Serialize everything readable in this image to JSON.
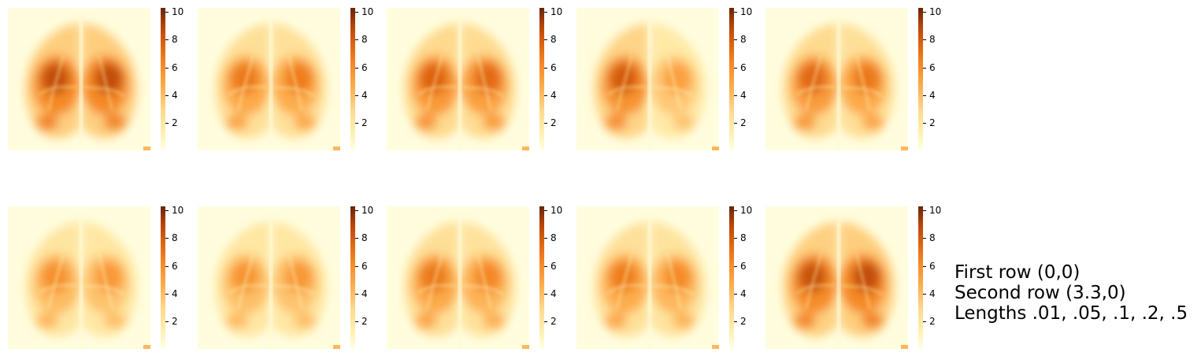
{
  "chart_data": {
    "type": "heatmap",
    "layout": "grid of 2 rows x 5 columns, each panel with its own colorbar",
    "colormap": [
      "#ffffe5",
      "#fff1b3",
      "#fed98e",
      "#fdae4f",
      "#f58a26",
      "#df6410",
      "#b54307",
      "#662506"
    ],
    "colorbar": {
      "range": [
        0,
        10.3
      ],
      "ticks": [
        2,
        4,
        6,
        8,
        10
      ],
      "tick_labels": [
        "2",
        "4",
        "6",
        "8",
        "10"
      ]
    },
    "axes_visible": false,
    "panels": [
      {
        "row": 0,
        "col": 0,
        "left_intensity": 0.92,
        "right_intensity": 0.92
      },
      {
        "row": 0,
        "col": 1,
        "left_intensity": 0.72,
        "right_intensity": 0.7
      },
      {
        "row": 0,
        "col": 2,
        "left_intensity": 0.82,
        "right_intensity": 0.78
      },
      {
        "row": 0,
        "col": 3,
        "left_intensity": 0.86,
        "right_intensity": 0.55
      },
      {
        "row": 0,
        "col": 4,
        "left_intensity": 0.8,
        "right_intensity": 0.72
      },
      {
        "row": 1,
        "col": 0,
        "left_intensity": 0.62,
        "right_intensity": 0.58
      },
      {
        "row": 1,
        "col": 1,
        "left_intensity": 0.6,
        "right_intensity": 0.58
      },
      {
        "row": 1,
        "col": 2,
        "left_intensity": 0.72,
        "right_intensity": 0.66
      },
      {
        "row": 1,
        "col": 3,
        "left_intensity": 0.7,
        "right_intensity": 0.64
      },
      {
        "row": 1,
        "col": 4,
        "left_intensity": 0.9,
        "right_intensity": 0.92
      }
    ],
    "annotation": [
      "First row (0,0)",
      "Second row (3.3,0)",
      "Lengths .01, .05, .1, .2, .5"
    ]
  }
}
